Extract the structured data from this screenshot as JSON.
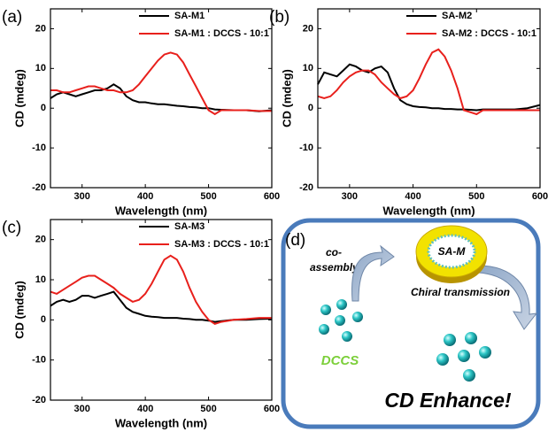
{
  "chart_data": [
    {
      "type": "line",
      "panel": "(a)",
      "x_label": "Wavelength (nm)",
      "y_label": "CD (mdeg)",
      "xlim": [
        250,
        600
      ],
      "xticks": [
        300,
        400,
        500,
        600
      ],
      "ylim": [
        -20,
        25
      ],
      "yticks": [
        -20,
        -10,
        0,
        10,
        20
      ],
      "x": [
        250,
        260,
        270,
        280,
        290,
        300,
        310,
        320,
        330,
        340,
        350,
        360,
        370,
        380,
        390,
        400,
        410,
        420,
        430,
        440,
        450,
        460,
        470,
        480,
        490,
        500,
        510,
        520,
        540,
        560,
        580,
        600
      ],
      "series": [
        {
          "name": "SA-M1",
          "color": "#000000",
          "values": [
            2.5,
            3.5,
            4,
            3.5,
            3,
            3.5,
            4,
            4.5,
            4.5,
            5,
            6,
            5,
            3,
            2,
            1.5,
            1.5,
            1.2,
            1,
            1,
            0.8,
            0.6,
            0.5,
            0.3,
            0.2,
            0,
            0,
            -0.3,
            -0.4,
            -0.5,
            -0.5,
            -0.8,
            -0.5
          ]
        },
        {
          "name": "SA-M1 : DCCS - 10:1",
          "color": "#e8201c",
          "values": [
            4.5,
            4.5,
            4,
            4,
            4.5,
            5,
            5.5,
            5.5,
            5,
            4.5,
            4.5,
            4,
            4,
            4.5,
            6,
            8,
            10,
            12,
            13.5,
            14,
            13.5,
            11.5,
            8.5,
            5.5,
            2.5,
            -0.5,
            -1.5,
            -0.5,
            -0.5,
            -0.5,
            -0.7,
            -0.7
          ]
        }
      ]
    },
    {
      "type": "line",
      "panel": "(b)",
      "x_label": "Wavelength (nm)",
      "y_label": "CD (mdeg)",
      "xlim": [
        250,
        600
      ],
      "xticks": [
        300,
        400,
        500,
        600
      ],
      "ylim": [
        -20,
        25
      ],
      "yticks": [
        -20,
        -10,
        0,
        10,
        20
      ],
      "x": [
        250,
        260,
        270,
        280,
        290,
        300,
        310,
        320,
        330,
        340,
        350,
        360,
        370,
        380,
        390,
        400,
        410,
        420,
        430,
        440,
        450,
        460,
        470,
        480,
        490,
        500,
        510,
        520,
        540,
        560,
        580,
        600
      ],
      "series": [
        {
          "name": "SA-M2",
          "color": "#000000",
          "values": [
            6,
            9,
            8.5,
            8,
            9.5,
            11,
            10.5,
            9.5,
            9,
            10,
            10.5,
            9,
            5,
            2,
            1,
            0.5,
            0.3,
            0.2,
            0,
            0,
            -0.2,
            -0.2,
            -0.3,
            -0.3,
            -0.4,
            -0.5,
            -0.3,
            -0.3,
            -0.3,
            -0.3,
            0,
            0.8
          ]
        },
        {
          "name": "SA-M2 : DCCS - 10:1",
          "color": "#e8201c",
          "values": [
            3,
            2.5,
            3,
            4.5,
            6.5,
            8,
            9,
            9.5,
            9.5,
            8.5,
            6.5,
            5,
            3.5,
            2.5,
            3,
            4.5,
            7.5,
            11,
            14,
            14.8,
            13,
            9.5,
            5,
            -0.5,
            -1,
            -1.5,
            -0.5,
            -0.5,
            -0.5,
            -0.5,
            -0.5,
            -0.5
          ]
        }
      ]
    },
    {
      "type": "line",
      "panel": "(c)",
      "x_label": "Wavelength (nm)",
      "y_label": "CD (mdeg)",
      "xlim": [
        250,
        600
      ],
      "xticks": [
        300,
        400,
        500,
        600
      ],
      "ylim": [
        -20,
        25
      ],
      "yticks": [
        -20,
        -10,
        0,
        10,
        20
      ],
      "x": [
        250,
        260,
        270,
        280,
        290,
        300,
        310,
        320,
        330,
        340,
        350,
        360,
        370,
        380,
        390,
        400,
        410,
        420,
        430,
        440,
        450,
        460,
        470,
        480,
        490,
        500,
        510,
        520,
        540,
        560,
        580,
        600
      ],
      "series": [
        {
          "name": "SA-M3",
          "color": "#000000",
          "values": [
            3.5,
            4.5,
            5,
            4.5,
            5,
            6,
            6,
            5.5,
            6,
            6.5,
            7,
            5,
            3,
            2,
            1.5,
            1,
            0.8,
            0.7,
            0.5,
            0.5,
            0.5,
            0.3,
            0.2,
            0,
            0,
            -0.2,
            -0.5,
            -0.3,
            0,
            0,
            0.2,
            0.3
          ]
        },
        {
          "name": "SA-M3 : DCCS - 10:1",
          "color": "#e8201c",
          "values": [
            7,
            6.5,
            7.5,
            8.5,
            9.5,
            10.5,
            11,
            11,
            10,
            9,
            8,
            6.5,
            5.5,
            4.5,
            5,
            6.5,
            9,
            12,
            15,
            16,
            15,
            12,
            8,
            4.5,
            2,
            0,
            -1,
            -0.5,
            0,
            0.2,
            0.5,
            0.5
          ]
        }
      ]
    }
  ],
  "diagram": {
    "panel": "(d)",
    "co_assembly": [
      "co-",
      "assembly"
    ],
    "center": "SA-M",
    "process": "Chiral transmission",
    "molecule": "DCCS",
    "result": "CD Enhance!"
  }
}
